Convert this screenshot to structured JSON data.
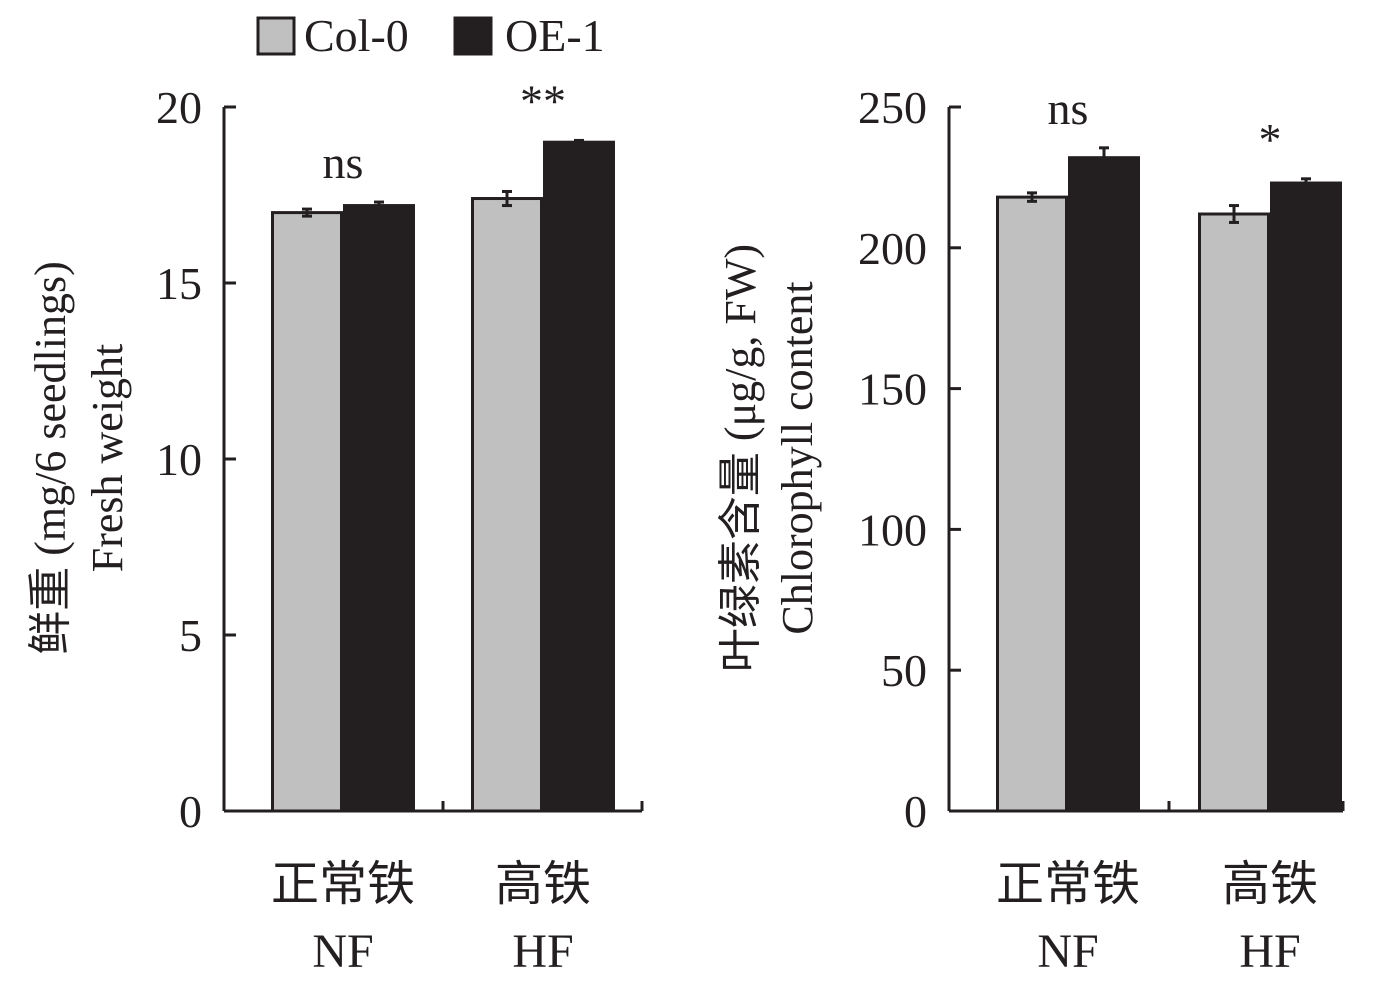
{
  "legend": {
    "placement": "top-left",
    "items": [
      {
        "label": "Col-0",
        "color": "#c0c0c0"
      },
      {
        "label": "OE-1",
        "color": "#231f20"
      }
    ]
  },
  "chart_data": [
    {
      "type": "bar",
      "ylabel_cn": "鲜重 (mg/6 seedlings)",
      "ylabel_en": "Fresh weight",
      "ylim": [
        0,
        20
      ],
      "yticks": [
        0,
        5,
        10,
        15,
        20
      ],
      "categories": [
        {
          "cn": "正常铁",
          "en": "NF"
        },
        {
          "cn": "高铁",
          "en": "HF"
        }
      ],
      "series": [
        {
          "name": "Col-0",
          "color": "#c0c0c0",
          "values": [
            17.0,
            17.4
          ],
          "errors": [
            0.1,
            0.2
          ]
        },
        {
          "name": "OE-1",
          "color": "#231f20",
          "values": [
            17.2,
            19.0
          ],
          "errors": [
            0.1,
            0.05
          ]
        }
      ],
      "annotations": [
        "ns",
        "**"
      ],
      "grid": false
    },
    {
      "type": "bar",
      "ylabel_cn": "叶绿素含量 (μg/g, FW)",
      "ylabel_en": "Chlorophyll content",
      "ylim": [
        0,
        250
      ],
      "yticks": [
        0,
        50,
        100,
        150,
        200,
        250
      ],
      "categories": [
        {
          "cn": "正常铁",
          "en": "NF"
        },
        {
          "cn": "高铁",
          "en": "HF"
        }
      ],
      "series": [
        {
          "name": "Col-0",
          "color": "#c0c0c0",
          "values": [
            218,
            212
          ],
          "errors": [
            1.5,
            3
          ]
        },
        {
          "name": "OE-1",
          "color": "#231f20",
          "values": [
            232,
            223
          ],
          "errors": [
            3.5,
            1.5
          ]
        }
      ],
      "annotations": [
        "ns",
        "*"
      ],
      "grid": false
    }
  ]
}
